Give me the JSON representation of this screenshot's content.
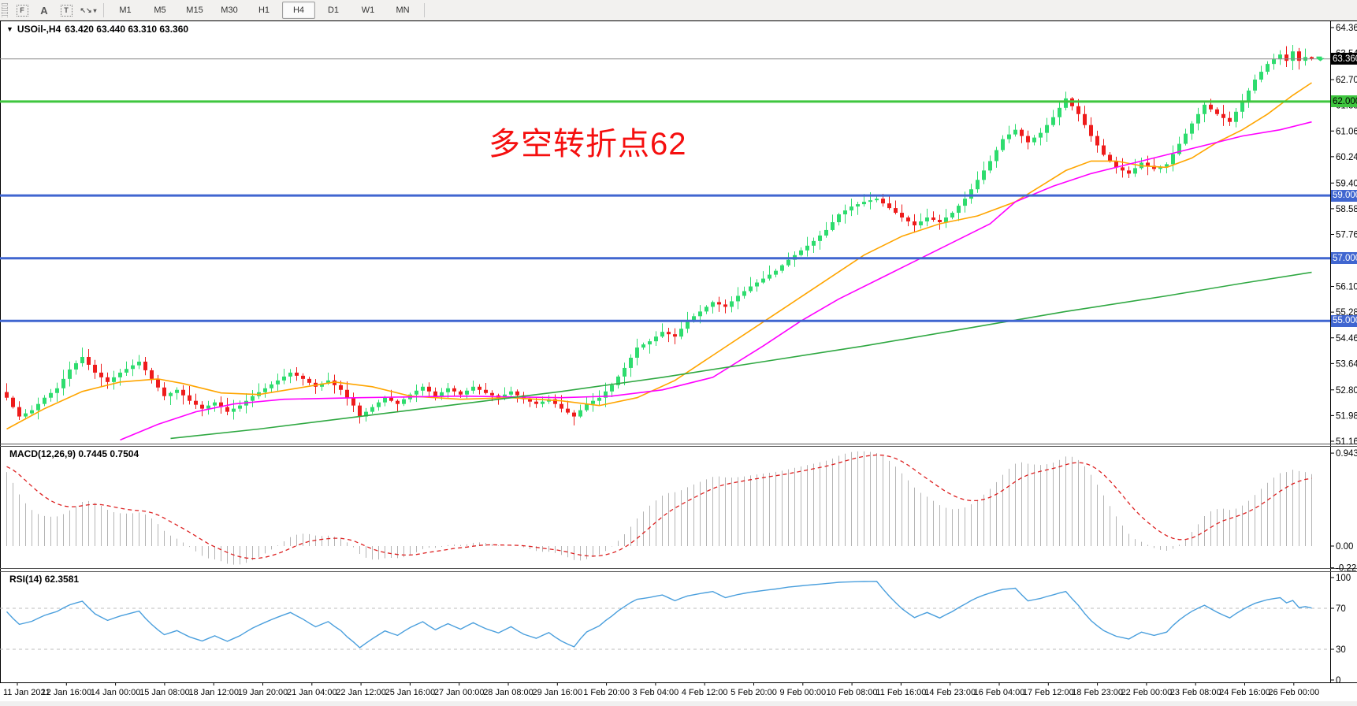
{
  "toolbar": {
    "tools": [
      {
        "name": "fibonacci",
        "glyph": "F",
        "boxed": true
      },
      {
        "name": "text",
        "glyph": "A",
        "boxed": false
      },
      {
        "name": "text-label",
        "glyph": "T",
        "boxed": true
      },
      {
        "name": "arrows",
        "glyph": "↖↘",
        "boxed": false,
        "dropdown": true
      }
    ],
    "timeframes": [
      "M1",
      "M5",
      "M15",
      "M30",
      "H1",
      "H4",
      "D1",
      "W1",
      "MN"
    ],
    "active_timeframe": "H4"
  },
  "chart": {
    "title": {
      "caret": "▼",
      "symbol_period": "USOil-,H4",
      "ohlc": "63.420 63.440 63.310 63.360"
    }
  },
  "annotation": {
    "text": "多空转折点62",
    "color": "#f50f0f"
  },
  "panes": {
    "macd": {
      "label": "MACD(12,26,9)",
      "values": "0.7445 0.7504",
      "ticks": [
        "0.9434",
        "0.00",
        "-0.2213"
      ]
    },
    "rsi": {
      "label": "RSI(14)",
      "value": "62.3581",
      "ticks": [
        "100",
        "70",
        "30",
        "0"
      ],
      "levels": [
        70,
        30
      ]
    }
  },
  "price_axis": {
    "ticks": [
      "64.360",
      "63.540",
      "62.700",
      "61.880",
      "61.060",
      "60.240",
      "59.400",
      "58.580",
      "57.760",
      "56.940",
      "56.100",
      "55.280",
      "54.460",
      "53.640",
      "52.800",
      "51.980",
      "51.160"
    ]
  },
  "time_axis": {
    "labels": [
      "11 Jan 2021",
      "12 Jan 16:00",
      "14 Jan 00:00",
      "15 Jan 08:00",
      "18 Jan 12:00",
      "19 Jan 20:00",
      "21 Jan 04:00",
      "22 Jan 12:00",
      "25 Jan 16:00",
      "27 Jan 00:00",
      "28 Jan 08:00",
      "29 Jan 16:00",
      "1 Feb 20:00",
      "3 Feb 04:00",
      "4 Feb 12:00",
      "5 Feb 20:00",
      "9 Feb 00:00",
      "10 Feb 08:00",
      "11 Feb 16:00",
      "14 Feb 23:00",
      "16 Feb 04:00",
      "17 Feb 12:00",
      "18 Feb 23:00",
      "22 Feb 00:00",
      "23 Feb 08:00",
      "24 Feb 16:00",
      "26 Feb 00:00"
    ]
  },
  "hlines": [
    {
      "name": "bid-line",
      "price": 63.36,
      "label": "63.360",
      "line": "#8a8a8a",
      "width": 1,
      "badge_bg": "#000000",
      "badge_fg": "#ffffff"
    },
    {
      "name": "level-62",
      "price": 62.0,
      "label": "62.000",
      "line": "#3fc63f",
      "width": 3,
      "badge_bg": "#3fc63f",
      "badge_fg": "#000000"
    },
    {
      "name": "level-59",
      "price": 59.0,
      "label": "59.000",
      "line": "#4066d0",
      "width": 3,
      "badge_bg": "#4066d0",
      "badge_fg": "#ffffff"
    },
    {
      "name": "level-57",
      "price": 57.0,
      "label": "57.000",
      "line": "#4066d0",
      "width": 3,
      "badge_bg": "#4066d0",
      "badge_fg": "#ffffff"
    },
    {
      "name": "level-55",
      "price": 55.0,
      "label": "55.000",
      "line": "#4066d0",
      "width": 3,
      "badge_bg": "#4066d0",
      "badge_fg": "#ffffff"
    }
  ],
  "colors": {
    "bull": "#2edc6e",
    "bear": "#ee1c1c",
    "macd_hist": "#b4b4b4",
    "macd_signal": "#dd2020",
    "rsi_line": "#4a9fdd",
    "axis": "#000000",
    "grid_dash": "#bdbdbd",
    "price_marker": "#2edc6e"
  },
  "chart_data": {
    "type": "candlestick",
    "symbol": "USOil-",
    "period": "H4",
    "bars": 208,
    "price_range": [
      51.16,
      64.36
    ],
    "last_ohlc": [
      63.42,
      63.44,
      63.31,
      63.36
    ],
    "close_anchors": [
      [
        0,
        52.55
      ],
      [
        2,
        51.95
      ],
      [
        4,
        52.15
      ],
      [
        6,
        52.55
      ],
      [
        8,
        52.85
      ],
      [
        10,
        53.45
      ],
      [
        12,
        53.85
      ],
      [
        14,
        53.35
      ],
      [
        16,
        53.05
      ],
      [
        18,
        53.35
      ],
      [
        21,
        53.7
      ],
      [
        23,
        53.15
      ],
      [
        25,
        52.6
      ],
      [
        27,
        52.8
      ],
      [
        29,
        52.45
      ],
      [
        31,
        52.2
      ],
      [
        33,
        52.4
      ],
      [
        35,
        52.1
      ],
      [
        37,
        52.3
      ],
      [
        39,
        52.6
      ],
      [
        41,
        52.85
      ],
      [
        43,
        53.1
      ],
      [
        45,
        53.35
      ],
      [
        47,
        53.15
      ],
      [
        49,
        52.9
      ],
      [
        51,
        53.1
      ],
      [
        53,
        52.8
      ],
      [
        55,
        52.3
      ],
      [
        56,
        51.95
      ],
      [
        58,
        52.25
      ],
      [
        60,
        52.55
      ],
      [
        62,
        52.35
      ],
      [
        64,
        52.65
      ],
      [
        66,
        52.9
      ],
      [
        68,
        52.6
      ],
      [
        70,
        52.85
      ],
      [
        72,
        52.65
      ],
      [
        74,
        52.9
      ],
      [
        76,
        52.7
      ],
      [
        78,
        52.55
      ],
      [
        80,
        52.75
      ],
      [
        82,
        52.5
      ],
      [
        84,
        52.35
      ],
      [
        86,
        52.5
      ],
      [
        88,
        52.2
      ],
      [
        90,
        51.95
      ],
      [
        92,
        52.35
      ],
      [
        94,
        52.55
      ],
      [
        96,
        52.95
      ],
      [
        98,
        53.5
      ],
      [
        100,
        54.15
      ],
      [
        102,
        54.35
      ],
      [
        104,
        54.65
      ],
      [
        106,
        54.5
      ],
      [
        108,
        55.0
      ],
      [
        110,
        55.3
      ],
      [
        112,
        55.6
      ],
      [
        114,
        55.45
      ],
      [
        116,
        55.8
      ],
      [
        118,
        56.1
      ],
      [
        120,
        56.35
      ],
      [
        122,
        56.6
      ],
      [
        124,
        56.95
      ],
      [
        126,
        57.25
      ],
      [
        128,
        57.55
      ],
      [
        130,
        57.9
      ],
      [
        132,
        58.4
      ],
      [
        134,
        58.65
      ],
      [
        136,
        58.8
      ],
      [
        138,
        58.9
      ],
      [
        140,
        58.6
      ],
      [
        142,
        58.3
      ],
      [
        144,
        58.05
      ],
      [
        146,
        58.3
      ],
      [
        148,
        58.15
      ],
      [
        150,
        58.45
      ],
      [
        152,
        58.9
      ],
      [
        154,
        59.5
      ],
      [
        156,
        60.1
      ],
      [
        158,
        60.8
      ],
      [
        160,
        61.1
      ],
      [
        162,
        60.7
      ],
      [
        164,
        61.0
      ],
      [
        166,
        61.5
      ],
      [
        168,
        62.1
      ],
      [
        170,
        61.6
      ],
      [
        172,
        60.9
      ],
      [
        174,
        60.3
      ],
      [
        176,
        59.9
      ],
      [
        178,
        59.7
      ],
      [
        180,
        60.05
      ],
      [
        182,
        59.85
      ],
      [
        184,
        60.0
      ],
      [
        186,
        60.65
      ],
      [
        188,
        61.3
      ],
      [
        190,
        61.9
      ],
      [
        192,
        61.6
      ],
      [
        194,
        61.35
      ],
      [
        196,
        62.0
      ],
      [
        198,
        62.7
      ],
      [
        200,
        63.2
      ],
      [
        202,
        63.5
      ],
      [
        203,
        63.3
      ],
      [
        204,
        63.6
      ],
      [
        205,
        63.3
      ],
      [
        206,
        63.42
      ],
      [
        207,
        63.36
      ]
    ],
    "moving_averages": [
      {
        "name": "ma-fast",
        "color": "#ffa500",
        "points": [
          [
            0,
            51.55
          ],
          [
            6,
            52.2
          ],
          [
            12,
            52.75
          ],
          [
            18,
            53.05
          ],
          [
            24,
            53.15
          ],
          [
            28,
            53.0
          ],
          [
            34,
            52.7
          ],
          [
            40,
            52.65
          ],
          [
            46,
            52.85
          ],
          [
            52,
            53.05
          ],
          [
            58,
            52.9
          ],
          [
            64,
            52.6
          ],
          [
            72,
            52.5
          ],
          [
            80,
            52.55
          ],
          [
            88,
            52.45
          ],
          [
            94,
            52.3
          ],
          [
            100,
            52.55
          ],
          [
            106,
            53.1
          ],
          [
            112,
            53.9
          ],
          [
            118,
            54.7
          ],
          [
            124,
            55.5
          ],
          [
            130,
            56.3
          ],
          [
            136,
            57.1
          ],
          [
            142,
            57.7
          ],
          [
            148,
            58.1
          ],
          [
            154,
            58.35
          ],
          [
            160,
            58.8
          ],
          [
            164,
            59.3
          ],
          [
            168,
            59.8
          ],
          [
            172,
            60.1
          ],
          [
            176,
            60.1
          ],
          [
            180,
            59.95
          ],
          [
            184,
            59.9
          ],
          [
            188,
            60.2
          ],
          [
            192,
            60.7
          ],
          [
            196,
            61.1
          ],
          [
            200,
            61.6
          ],
          [
            204,
            62.2
          ],
          [
            207,
            62.6
          ]
        ]
      },
      {
        "name": "ma-mid",
        "color": "#ff00ff",
        "points": [
          [
            18,
            51.2
          ],
          [
            24,
            51.7
          ],
          [
            30,
            52.1
          ],
          [
            36,
            52.35
          ],
          [
            44,
            52.5
          ],
          [
            56,
            52.55
          ],
          [
            72,
            52.6
          ],
          [
            88,
            52.55
          ],
          [
            96,
            52.6
          ],
          [
            104,
            52.8
          ],
          [
            112,
            53.2
          ],
          [
            120,
            54.2
          ],
          [
            126,
            55.0
          ],
          [
            132,
            55.7
          ],
          [
            140,
            56.5
          ],
          [
            148,
            57.3
          ],
          [
            156,
            58.1
          ],
          [
            160,
            58.8
          ],
          [
            166,
            59.3
          ],
          [
            172,
            59.7
          ],
          [
            180,
            60.1
          ],
          [
            188,
            60.5
          ],
          [
            196,
            60.9
          ],
          [
            202,
            61.1
          ],
          [
            207,
            61.35
          ]
        ]
      },
      {
        "name": "ma-slow",
        "color": "#2fa842",
        "points": [
          [
            26,
            51.25
          ],
          [
            40,
            51.55
          ],
          [
            56,
            51.95
          ],
          [
            72,
            52.35
          ],
          [
            88,
            52.75
          ],
          [
            104,
            53.2
          ],
          [
            120,
            53.7
          ],
          [
            136,
            54.2
          ],
          [
            152,
            54.75
          ],
          [
            168,
            55.3
          ],
          [
            184,
            55.8
          ],
          [
            196,
            56.2
          ],
          [
            207,
            56.55
          ]
        ]
      }
    ],
    "macd": {
      "fast": 12,
      "slow": 26,
      "signal": 9,
      "last_main": 0.7445,
      "last_signal": 0.7504,
      "scale_top": 0.9434,
      "scale_bottom": -0.2213
    },
    "rsi": {
      "period": 14,
      "last": 62.3581,
      "scale": [
        0,
        100
      ]
    }
  }
}
